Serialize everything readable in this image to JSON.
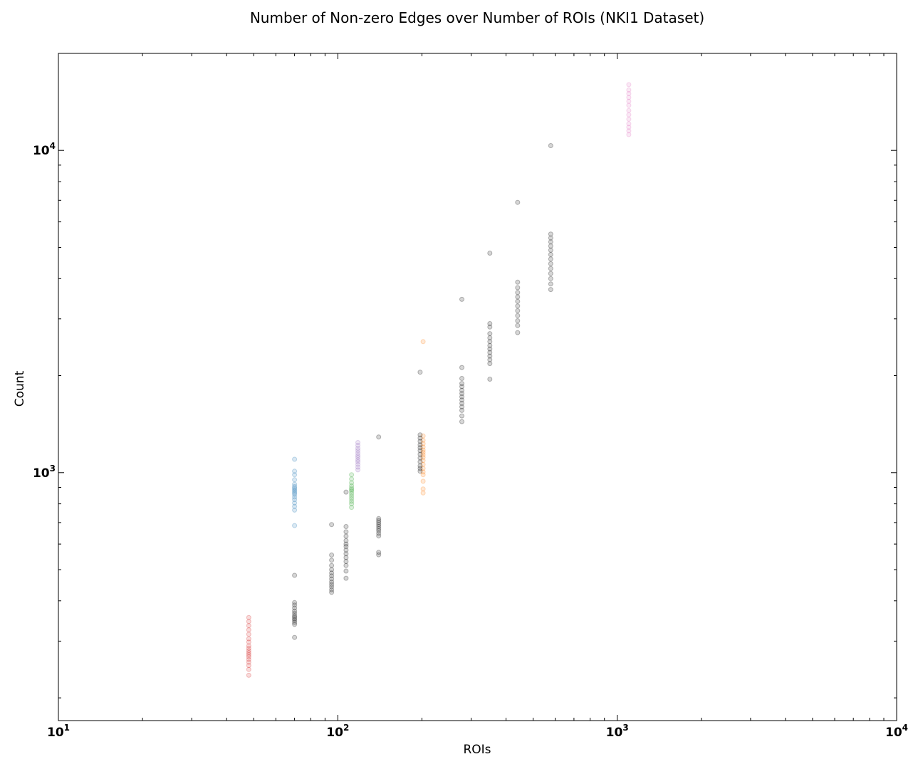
{
  "chart_data": {
    "type": "scatter",
    "title": "Number of Non-zero Edges over Number of ROIs (NKI1 Dataset)",
    "xlabel": "ROIs",
    "ylabel": "Count",
    "xscale": "log",
    "yscale": "log",
    "xlim": [
      10,
      10000
    ],
    "ylim": [
      170,
      20000
    ],
    "grid": false,
    "legend": "none",
    "x_ticks": [
      {
        "base": "10",
        "exp": "1",
        "value": 10
      },
      {
        "base": "10",
        "exp": "2",
        "value": 100
      },
      {
        "base": "10",
        "exp": "3",
        "value": 1000
      },
      {
        "base": "10",
        "exp": "4",
        "value": 10000
      }
    ],
    "y_ticks": [
      {
        "base": "10",
        "exp": "3",
        "value": 1000
      },
      {
        "base": "10",
        "exp": "4",
        "value": 10000
      }
    ],
    "series": [
      {
        "color": "#d62728",
        "points": [
          [
            48,
            355
          ],
          [
            48,
            345
          ],
          [
            48,
            335
          ],
          [
            48,
            325
          ],
          [
            48,
            315
          ],
          [
            48,
            305
          ],
          [
            48,
            298
          ],
          [
            48,
            290
          ],
          [
            48,
            285
          ],
          [
            48,
            280
          ],
          [
            48,
            276
          ],
          [
            48,
            272
          ],
          [
            48,
            268
          ],
          [
            48,
            263
          ],
          [
            48,
            258
          ],
          [
            48,
            252
          ],
          [
            48,
            245
          ],
          [
            48,
            235
          ]
        ]
      },
      {
        "color": "#1f77b4",
        "points": [
          [
            70,
            1100
          ],
          [
            70,
            1010
          ],
          [
            70,
            985
          ],
          [
            70,
            950
          ],
          [
            70,
            920
          ],
          [
            70,
            905
          ],
          [
            70,
            895
          ],
          [
            70,
            885
          ],
          [
            70,
            875
          ],
          [
            70,
            865
          ],
          [
            70,
            855
          ],
          [
            70,
            840
          ],
          [
            70,
            825
          ],
          [
            70,
            805
          ],
          [
            70,
            785
          ],
          [
            70,
            765
          ],
          [
            70,
            685
          ]
        ]
      },
      {
        "color": "#2ca02c",
        "points": [
          [
            112,
            985
          ],
          [
            112,
            955
          ],
          [
            112,
            930
          ],
          [
            112,
            910
          ],
          [
            112,
            895
          ],
          [
            112,
            885
          ],
          [
            112,
            875
          ],
          [
            112,
            860
          ],
          [
            112,
            845
          ],
          [
            112,
            830
          ],
          [
            112,
            815
          ],
          [
            112,
            800
          ],
          [
            112,
            780
          ]
        ]
      },
      {
        "color": "#9467bd",
        "points": [
          [
            118,
            1240
          ],
          [
            118,
            1215
          ],
          [
            118,
            1190
          ],
          [
            118,
            1170
          ],
          [
            118,
            1150
          ],
          [
            118,
            1130
          ],
          [
            118,
            1115
          ],
          [
            118,
            1095
          ],
          [
            118,
            1080
          ],
          [
            118,
            1060
          ],
          [
            118,
            1040
          ],
          [
            118,
            1020
          ]
        ]
      },
      {
        "color": "#ff7f0e",
        "points": [
          [
            202,
            2550
          ],
          [
            202,
            1300
          ],
          [
            202,
            1260
          ],
          [
            202,
            1230
          ],
          [
            202,
            1200
          ],
          [
            202,
            1175
          ],
          [
            202,
            1155
          ],
          [
            202,
            1135
          ],
          [
            202,
            1115
          ],
          [
            202,
            1090
          ],
          [
            202,
            1060
          ],
          [
            202,
            1030
          ],
          [
            202,
            1005
          ],
          [
            202,
            985
          ],
          [
            202,
            940
          ],
          [
            202,
            890
          ],
          [
            202,
            865
          ]
        ]
      },
      {
        "color": "#e377c2",
        "points": [
          [
            1100,
            16000
          ],
          [
            1100,
            15400
          ],
          [
            1100,
            15000
          ],
          [
            1100,
            14600
          ],
          [
            1100,
            14200
          ],
          [
            1100,
            13800
          ],
          [
            1100,
            13300
          ],
          [
            1100,
            12900
          ],
          [
            1100,
            12500
          ],
          [
            1100,
            12100
          ],
          [
            1100,
            11800
          ],
          [
            1100,
            11500
          ],
          [
            1100,
            11200
          ]
        ]
      },
      {
        "color": "#000000",
        "points": [
          [
            70,
            480
          ],
          [
            70,
            395
          ],
          [
            70,
            388
          ],
          [
            70,
            380
          ],
          [
            70,
            372
          ],
          [
            70,
            366
          ],
          [
            70,
            360
          ],
          [
            70,
            356
          ],
          [
            70,
            352
          ],
          [
            70,
            348
          ],
          [
            70,
            343
          ],
          [
            70,
            338
          ],
          [
            70,
            308
          ],
          [
            95,
            690
          ],
          [
            95,
            555
          ],
          [
            95,
            535
          ],
          [
            95,
            515
          ],
          [
            95,
            500
          ],
          [
            95,
            488
          ],
          [
            95,
            478
          ],
          [
            95,
            468
          ],
          [
            95,
            458
          ],
          [
            95,
            450
          ],
          [
            95,
            442
          ],
          [
            95,
            433
          ],
          [
            95,
            425
          ],
          [
            107,
            870
          ],
          [
            107,
            680
          ],
          [
            107,
            655
          ],
          [
            107,
            635
          ],
          [
            107,
            615
          ],
          [
            107,
            600
          ],
          [
            107,
            590
          ],
          [
            107,
            575
          ],
          [
            107,
            560
          ],
          [
            107,
            545
          ],
          [
            107,
            530
          ],
          [
            107,
            515
          ],
          [
            107,
            495
          ],
          [
            107,
            470
          ],
          [
            140,
            1290
          ],
          [
            140,
            720
          ],
          [
            140,
            710
          ],
          [
            140,
            700
          ],
          [
            140,
            690
          ],
          [
            140,
            680
          ],
          [
            140,
            670
          ],
          [
            140,
            660
          ],
          [
            140,
            648
          ],
          [
            140,
            636
          ],
          [
            140,
            566
          ],
          [
            140,
            556
          ],
          [
            197,
            2050
          ],
          [
            197,
            1310
          ],
          [
            197,
            1280
          ],
          [
            197,
            1250
          ],
          [
            197,
            1220
          ],
          [
            197,
            1195
          ],
          [
            197,
            1170
          ],
          [
            197,
            1140
          ],
          [
            197,
            1110
          ],
          [
            197,
            1080
          ],
          [
            197,
            1050
          ],
          [
            197,
            1030
          ],
          [
            197,
            1010
          ],
          [
            278,
            3450
          ],
          [
            278,
            2120
          ],
          [
            278,
            1960
          ],
          [
            278,
            1890
          ],
          [
            278,
            1850
          ],
          [
            278,
            1800
          ],
          [
            278,
            1760
          ],
          [
            278,
            1720
          ],
          [
            278,
            1680
          ],
          [
            278,
            1640
          ],
          [
            278,
            1600
          ],
          [
            278,
            1560
          ],
          [
            278,
            1500
          ],
          [
            278,
            1440
          ],
          [
            350,
            4800
          ],
          [
            350,
            2900
          ],
          [
            350,
            2830
          ],
          [
            350,
            2700
          ],
          [
            350,
            2620
          ],
          [
            350,
            2550
          ],
          [
            350,
            2480
          ],
          [
            350,
            2420
          ],
          [
            350,
            2360
          ],
          [
            350,
            2300
          ],
          [
            350,
            2240
          ],
          [
            350,
            2180
          ],
          [
            350,
            1950
          ],
          [
            440,
            6900
          ],
          [
            440,
            3900
          ],
          [
            440,
            3750
          ],
          [
            440,
            3620
          ],
          [
            440,
            3510
          ],
          [
            440,
            3400
          ],
          [
            440,
            3290
          ],
          [
            440,
            3180
          ],
          [
            440,
            3070
          ],
          [
            440,
            2960
          ],
          [
            440,
            2860
          ],
          [
            440,
            2720
          ],
          [
            578,
            10350
          ],
          [
            578,
            5500
          ],
          [
            578,
            5350
          ],
          [
            578,
            5200
          ],
          [
            578,
            5050
          ],
          [
            578,
            4900
          ],
          [
            578,
            4750
          ],
          [
            578,
            4600
          ],
          [
            578,
            4450
          ],
          [
            578,
            4300
          ],
          [
            578,
            4150
          ],
          [
            578,
            4000
          ],
          [
            578,
            3850
          ],
          [
            578,
            3700
          ]
        ]
      }
    ]
  }
}
